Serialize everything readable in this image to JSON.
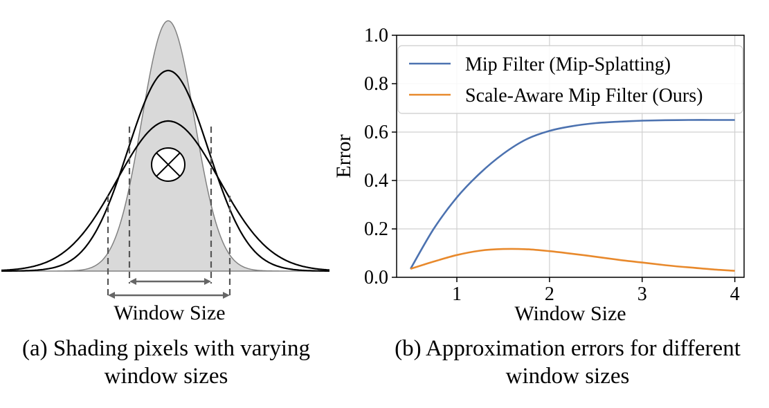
{
  "panel_a": {
    "label": "Window Size",
    "caption_line1": "(a) Shading pixels with varying",
    "caption_line2": "window sizes"
  },
  "panel_b": {
    "caption_line1": "(b) Approximation errors for different",
    "caption_line2": "window sizes"
  },
  "colors": {
    "blue": "#4c72b0",
    "orange": "#e8892c",
    "grid": "#d0d0d0",
    "fill": "#d9d9d9"
  },
  "chart_data": {
    "type": "line",
    "title": "",
    "xlabel": "Window Size",
    "ylabel": "Error",
    "xlim": [
      0.35,
      4.1
    ],
    "ylim": [
      0.0,
      1.0
    ],
    "xticks": [
      1,
      2,
      3,
      4
    ],
    "xtick_labels": [
      "1",
      "2",
      "3",
      "4"
    ],
    "yticks": [
      0.0,
      0.2,
      0.4,
      0.6,
      0.8,
      1.0
    ],
    "ytick_labels": [
      "0.0",
      "0.2",
      "0.4",
      "0.6",
      "0.8",
      "1.0"
    ],
    "grid": true,
    "legend_position": "top",
    "series": [
      {
        "name": "Mip Filter (Mip-Splatting)",
        "color": "#4c72b0",
        "x": [
          0.5,
          0.75,
          1.0,
          1.25,
          1.5,
          1.75,
          2.0,
          2.25,
          2.5,
          2.75,
          3.0,
          3.25,
          3.5,
          3.75,
          4.0
        ],
        "y": [
          0.035,
          0.2,
          0.33,
          0.43,
          0.51,
          0.57,
          0.605,
          0.625,
          0.637,
          0.643,
          0.647,
          0.649,
          0.65,
          0.65,
          0.65
        ]
      },
      {
        "name": "Scale-Aware Mip Filter (Ours)",
        "color": "#e8892c",
        "x": [
          0.5,
          0.75,
          1.0,
          1.25,
          1.5,
          1.75,
          2.0,
          2.25,
          2.5,
          2.75,
          3.0,
          3.25,
          3.5,
          3.75,
          4.0
        ],
        "y": [
          0.035,
          0.065,
          0.092,
          0.11,
          0.117,
          0.116,
          0.108,
          0.097,
          0.085,
          0.072,
          0.061,
          0.05,
          0.041,
          0.033,
          0.027
        ]
      }
    ]
  }
}
